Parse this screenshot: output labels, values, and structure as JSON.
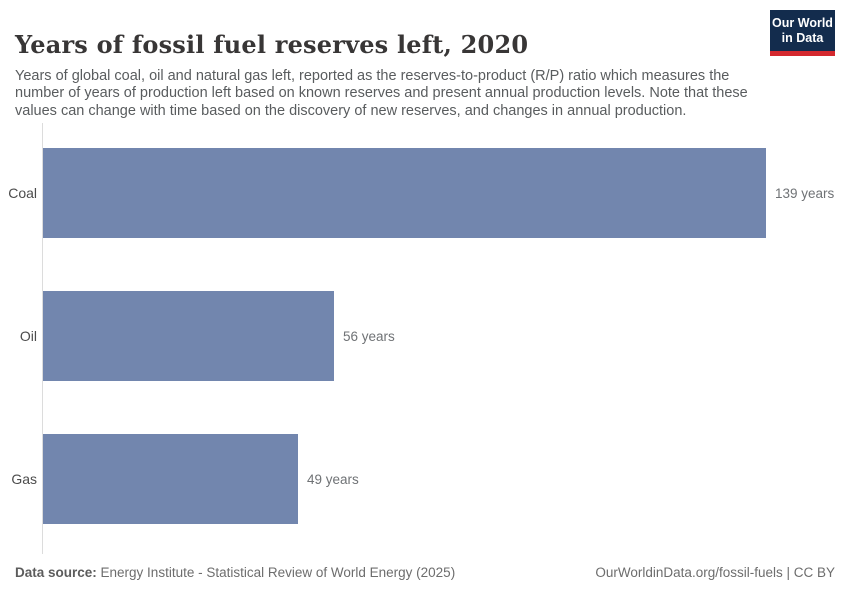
{
  "header": {
    "title": "Years of fossil fuel reserves left, 2020",
    "subtitle": "Years of global coal, oil and natural gas left, reported as the reserves-to-product (R/P) ratio which measures the number of years of production left based on known reserves and present annual production levels. Note that these values can change with time based on the discovery of new reserves, and changes in annual production."
  },
  "logo": {
    "line1": "Our World",
    "line2": "in Data",
    "bg_color": "#132c4d",
    "accent_color": "#d4292e"
  },
  "chart_data": {
    "type": "bar",
    "orientation": "horizontal",
    "categories": [
      "Coal",
      "Oil",
      "Gas"
    ],
    "values": [
      139,
      56,
      49
    ],
    "value_labels": [
      "139 years",
      "56 years",
      "49 years"
    ],
    "unit": "years",
    "xlim": [
      0,
      139
    ],
    "bar_color": "#7286ae",
    "axis_color": "#dcdcdc",
    "grid": false,
    "legend": "none",
    "title": "Years of fossil fuel reserves left, 2020"
  },
  "footer": {
    "source_label": "Data source:",
    "source_text": " Energy Institute - Statistical Review of World Energy (2025)",
    "link_text": "OurWorldinData.org/fossil-fuels | CC BY"
  }
}
